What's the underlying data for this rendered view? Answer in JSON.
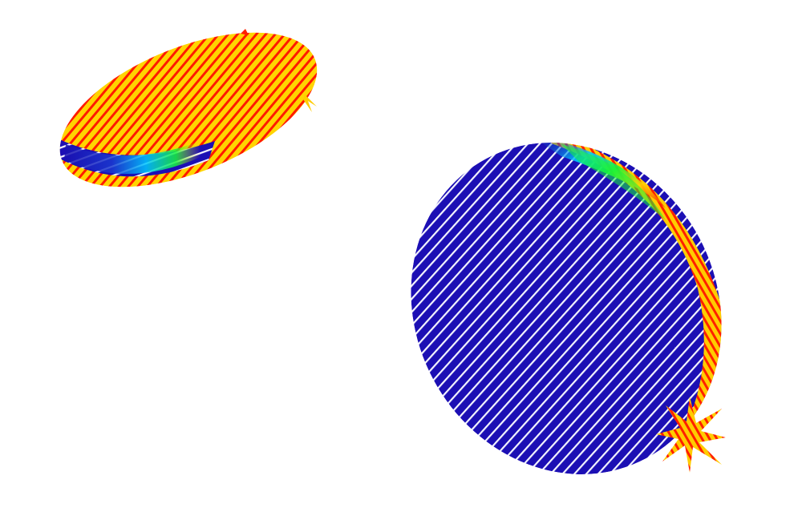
{
  "colors": {
    "background": "#ffffff",
    "hot": "#ff0000",
    "warm": "#ffd400",
    "mid": "#16f53a",
    "cool": "#00c8ff",
    "cold": "#1a10b0",
    "stroke": "#ffffff"
  },
  "objects": [
    {
      "name": "small-disc",
      "dominant_field": "warm",
      "stripe_color": "hot",
      "gradient_band": [
        "cold",
        "cool",
        "mid",
        "warm"
      ]
    },
    {
      "name": "large-disc",
      "dominant_field": "cold",
      "stripe_color": "stroke",
      "gradient_band": [
        "cold",
        "cool",
        "mid",
        "warm",
        "hot"
      ]
    }
  ]
}
